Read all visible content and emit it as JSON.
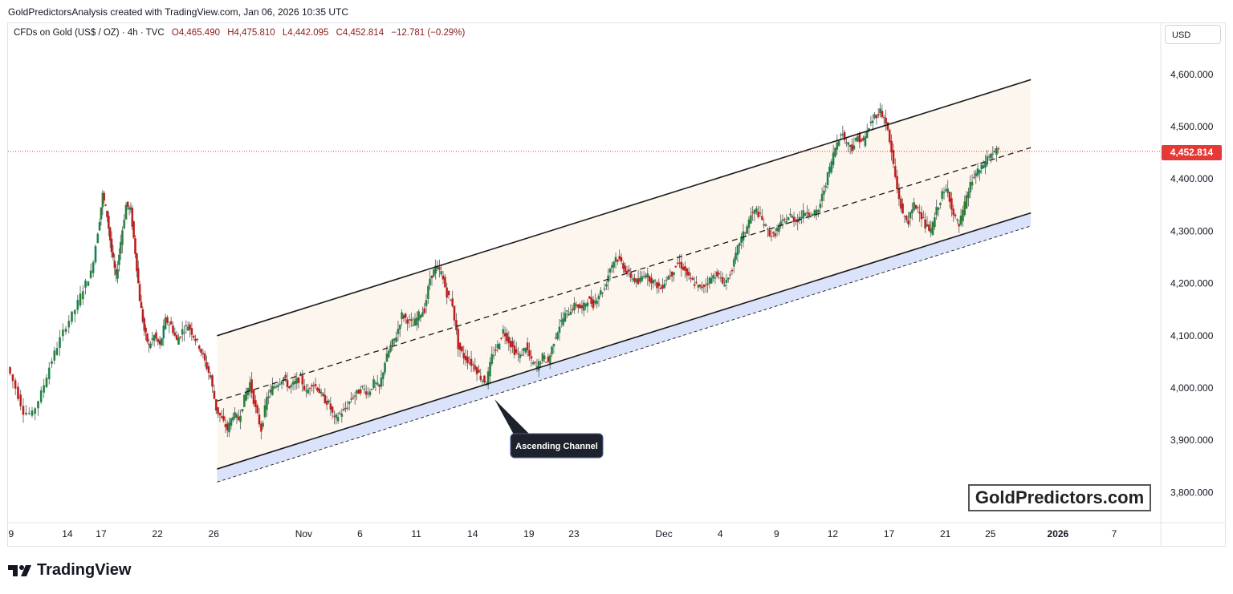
{
  "header": {
    "credit": "GoldPredictorsAnalysis created with TradingView.com, Jan 06, 2026 10:35 UTC"
  },
  "legend": {
    "symbol": "CFDs on Gold (US$ / OZ) · 4h · TVC",
    "open": "O4,465.490",
    "high": "H4,475.810",
    "low": "L4,442.095",
    "close": "C4,452.814",
    "change": "−12.781 (−0.29%)"
  },
  "currency_button": "USD",
  "last_price": "4,452.814",
  "watermark": "GoldPredictors.com",
  "footer": {
    "logo_text": "TradingView"
  },
  "annotation": {
    "text": "Ascending Channel"
  },
  "colors": {
    "up": "#26a69a",
    "down": "#ef5350",
    "up_body": "#2e7d32",
    "down_body": "#b71c1c",
    "channel_fill": "#fdf6ee",
    "support_band": "#dbe3fb",
    "last_price_line": "#e53935",
    "badge": "#1e222d"
  },
  "chart_data": {
    "type": "candlestick",
    "title": "CFDs on Gold (US$ / OZ)",
    "interval": "4h",
    "ylim": [
      3740,
      4680
    ],
    "y_ticks": [
      3800,
      3900,
      4000,
      4100,
      4200,
      4300,
      4400,
      4500,
      4600
    ],
    "y_tick_labels": [
      "3,800.000",
      "3,900.000",
      "4,000.000",
      "4,100.000",
      "4,200.000",
      "4,300.000",
      "4,400.000",
      "4,500.000",
      "4,600.000"
    ],
    "x_tick_labels": [
      {
        "day": 9,
        "label": "9"
      },
      {
        "day": 14,
        "label": "14"
      },
      {
        "day": 17,
        "label": "17"
      },
      {
        "day": 22,
        "label": "22"
      },
      {
        "day": 27,
        "label": "26"
      },
      {
        "day": 35,
        "label": "Nov"
      },
      {
        "day": 40,
        "label": "6"
      },
      {
        "day": 45,
        "label": "11"
      },
      {
        "day": 50,
        "label": "14"
      },
      {
        "day": 55,
        "label": "19"
      },
      {
        "day": 59,
        "label": "23"
      },
      {
        "day": 67,
        "label": "Dec"
      },
      {
        "day": 72,
        "label": "4"
      },
      {
        "day": 77,
        "label": "9"
      },
      {
        "day": 82,
        "label": "12"
      },
      {
        "day": 87,
        "label": "17"
      },
      {
        "day": 92,
        "label": "21"
      },
      {
        "day": 96,
        "label": "25"
      },
      {
        "day": 102,
        "label": "2026",
        "bold": true
      },
      {
        "day": 107,
        "label": "7"
      }
    ],
    "close_path": [
      [
        8.8,
        4040
      ],
      [
        9.5,
        4000
      ],
      [
        10.2,
        3955
      ],
      [
        11,
        3950
      ],
      [
        11.8,
        3990
      ],
      [
        12.5,
        4040
      ],
      [
        13.2,
        4080
      ],
      [
        14,
        4120
      ],
      [
        14.8,
        4150
      ],
      [
        15.5,
        4190
      ],
      [
        16.2,
        4220
      ],
      [
        16.8,
        4300
      ],
      [
        17.2,
        4370
      ],
      [
        17.6,
        4330
      ],
      [
        18,
        4260
      ],
      [
        18.4,
        4210
      ],
      [
        18.8,
        4280
      ],
      [
        19.3,
        4350
      ],
      [
        19.7,
        4340
      ],
      [
        20.1,
        4260
      ],
      [
        20.5,
        4170
      ],
      [
        20.9,
        4110
      ],
      [
        21.3,
        4080
      ],
      [
        21.8,
        4100
      ],
      [
        22.3,
        4080
      ],
      [
        22.8,
        4130
      ],
      [
        23.3,
        4120
      ],
      [
        23.8,
        4090
      ],
      [
        24.3,
        4110
      ],
      [
        24.8,
        4120
      ],
      [
        25.3,
        4100
      ],
      [
        25.8,
        4080
      ],
      [
        26.3,
        4050
      ],
      [
        26.8,
        4020
      ],
      [
        27.3,
        3960
      ],
      [
        27.8,
        3940
      ],
      [
        28.3,
        3920
      ],
      [
        28.8,
        3950
      ],
      [
        29.3,
        3940
      ],
      [
        29.8,
        3980
      ],
      [
        30.3,
        4010
      ],
      [
        30.8,
        3960
      ],
      [
        31.3,
        3920
      ],
      [
        31.8,
        3980
      ],
      [
        32.3,
        4000
      ],
      [
        32.8,
        4010
      ],
      [
        33.3,
        4020
      ],
      [
        33.8,
        4000
      ],
      [
        34.3,
        4010
      ],
      [
        34.8,
        4020
      ],
      [
        35.3,
        3990
      ],
      [
        35.8,
        4010
      ],
      [
        36.3,
        4000
      ],
      [
        36.8,
        3980
      ],
      [
        37.3,
        3970
      ],
      [
        37.8,
        3940
      ],
      [
        38.3,
        3950
      ],
      [
        38.8,
        3960
      ],
      [
        39.3,
        3980
      ],
      [
        39.8,
        3990
      ],
      [
        40.3,
        4000
      ],
      [
        40.8,
        3990
      ],
      [
        41.3,
        4010
      ],
      [
        41.8,
        4000
      ],
      [
        42.3,
        4050
      ],
      [
        42.8,
        4080
      ],
      [
        43.3,
        4100
      ],
      [
        43.8,
        4140
      ],
      [
        44.3,
        4130
      ],
      [
        44.8,
        4120
      ],
      [
        45.3,
        4140
      ],
      [
        45.8,
        4150
      ],
      [
        46.3,
        4210
      ],
      [
        46.8,
        4230
      ],
      [
        47.3,
        4220
      ],
      [
        47.8,
        4180
      ],
      [
        48.3,
        4160
      ],
      [
        48.8,
        4080
      ],
      [
        49.3,
        4060
      ],
      [
        49.8,
        4050
      ],
      [
        50.3,
        4040
      ],
      [
        50.8,
        4020
      ],
      [
        51.3,
        4010
      ],
      [
        51.8,
        4060
      ],
      [
        52.3,
        4080
      ],
      [
        52.8,
        4110
      ],
      [
        53.3,
        4090
      ],
      [
        53.8,
        4070
      ],
      [
        54.3,
        4060
      ],
      [
        54.8,
        4080
      ],
      [
        55.3,
        4050
      ],
      [
        55.8,
        4040
      ],
      [
        56.3,
        4060
      ],
      [
        56.8,
        4050
      ],
      [
        57.3,
        4090
      ],
      [
        57.8,
        4120
      ],
      [
        58.3,
        4140
      ],
      [
        58.8,
        4150
      ],
      [
        59.3,
        4160
      ],
      [
        59.8,
        4150
      ],
      [
        60.3,
        4170
      ],
      [
        60.8,
        4160
      ],
      [
        61.3,
        4180
      ],
      [
        61.8,
        4190
      ],
      [
        62.3,
        4230
      ],
      [
        62.8,
        4250
      ],
      [
        63.3,
        4240
      ],
      [
        63.8,
        4220
      ],
      [
        64.3,
        4210
      ],
      [
        64.8,
        4200
      ],
      [
        65.3,
        4220
      ],
      [
        65.8,
        4210
      ],
      [
        66.3,
        4200
      ],
      [
        66.8,
        4190
      ],
      [
        67.3,
        4210
      ],
      [
        67.8,
        4220
      ],
      [
        68.3,
        4240
      ],
      [
        68.8,
        4230
      ],
      [
        69.3,
        4210
      ],
      [
        69.8,
        4200
      ],
      [
        70.3,
        4190
      ],
      [
        70.8,
        4200
      ],
      [
        71.3,
        4210
      ],
      [
        71.8,
        4220
      ],
      [
        72.3,
        4200
      ],
      [
        72.8,
        4210
      ],
      [
        73.3,
        4240
      ],
      [
        73.8,
        4280
      ],
      [
        74.3,
        4300
      ],
      [
        74.8,
        4330
      ],
      [
        75.3,
        4340
      ],
      [
        75.8,
        4320
      ],
      [
        76.3,
        4300
      ],
      [
        76.8,
        4290
      ],
      [
        77.3,
        4310
      ],
      [
        77.8,
        4320
      ],
      [
        78.3,
        4330
      ],
      [
        78.8,
        4320
      ],
      [
        79.3,
        4330
      ],
      [
        79.8,
        4340
      ],
      [
        80.3,
        4330
      ],
      [
        80.8,
        4340
      ],
      [
        81.3,
        4380
      ],
      [
        81.8,
        4420
      ],
      [
        82.3,
        4460
      ],
      [
        82.8,
        4490
      ],
      [
        83.3,
        4470
      ],
      [
        83.8,
        4460
      ],
      [
        84.3,
        4480
      ],
      [
        84.8,
        4470
      ],
      [
        85.3,
        4500
      ],
      [
        85.8,
        4520
      ],
      [
        86.3,
        4530
      ],
      [
        86.8,
        4510
      ],
      [
        87.3,
        4450
      ],
      [
        87.8,
        4380
      ],
      [
        88.3,
        4330
      ],
      [
        88.8,
        4320
      ],
      [
        89.3,
        4350
      ],
      [
        89.8,
        4340
      ],
      [
        90.3,
        4310
      ],
      [
        90.8,
        4300
      ],
      [
        91.3,
        4340
      ],
      [
        91.8,
        4370
      ],
      [
        92.3,
        4380
      ],
      [
        92.8,
        4330
      ],
      [
        93.3,
        4310
      ],
      [
        93.8,
        4350
      ],
      [
        94.3,
        4390
      ],
      [
        94.8,
        4410
      ],
      [
        95.3,
        4420
      ],
      [
        95.8,
        4440
      ],
      [
        96.3,
        4450
      ],
      [
        96.8,
        4455
      ]
    ],
    "day_mapping": [
      {
        "day": 8.8,
        "x": 11
      },
      {
        "day": 107,
        "x": 1388
      }
    ],
    "channel": {
      "upper": [
        [
          27.3,
          4100
        ],
        [
          99.6,
          4590
        ]
      ],
      "middle": [
        [
          27.3,
          3975
        ],
        [
          99.6,
          4460
        ]
      ],
      "lower": [
        [
          27.3,
          3845
        ],
        [
          99.6,
          4335
        ]
      ],
      "support": [
        [
          27.3,
          3820
        ],
        [
          99.6,
          4310
        ]
      ]
    },
    "last_price": 4452.814
  }
}
